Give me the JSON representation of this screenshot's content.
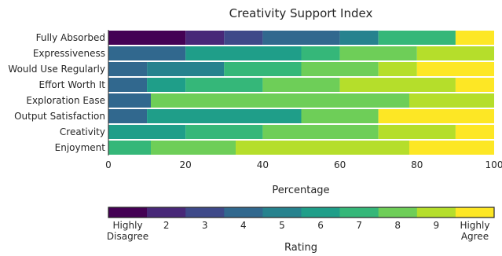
{
  "chart_data": {
    "type": "bar",
    "orientation": "horizontal",
    "stacked": true,
    "title": "Creativity Support Index",
    "xlabel": "Percentage",
    "xlim": [
      0,
      100
    ],
    "x_ticks": [
      "0",
      "20",
      "40",
      "60",
      "80",
      "100"
    ],
    "grid": false,
    "categories": [
      "Fully Absorbed",
      "Expressiveness",
      "Would Use Regularly",
      "Effort Worth It",
      "Exploration Ease",
      "Output Satisfaction",
      "Creativity",
      "Enjoyment"
    ],
    "series": [
      {
        "name": "Highly Disagree",
        "values": [
          20,
          0,
          0,
          0,
          0,
          0,
          0,
          0
        ]
      },
      {
        "name": "2",
        "values": [
          10,
          0,
          0,
          0,
          0,
          0,
          0,
          0
        ]
      },
      {
        "name": "3",
        "values": [
          10,
          0,
          0,
          0,
          0,
          0,
          0,
          0
        ]
      },
      {
        "name": "4",
        "values": [
          20,
          20,
          10,
          10,
          11,
          10,
          0,
          0
        ]
      },
      {
        "name": "5",
        "values": [
          10,
          0,
          20,
          0,
          0,
          0,
          0,
          0
        ]
      },
      {
        "name": "6",
        "values": [
          0,
          30,
          0,
          10,
          0,
          40,
          20,
          0
        ]
      },
      {
        "name": "7",
        "values": [
          20,
          10,
          20,
          20,
          0,
          0,
          20,
          11
        ]
      },
      {
        "name": "8",
        "values": [
          0,
          20,
          20,
          20,
          67,
          20,
          30,
          22
        ]
      },
      {
        "name": "9",
        "values": [
          0,
          20,
          10,
          30,
          22,
          0,
          20,
          45
        ]
      },
      {
        "name": "Highly Agree",
        "values": [
          10,
          0,
          20,
          10,
          0,
          30,
          10,
          22
        ]
      }
    ],
    "colors": [
      "#440154",
      "#482878",
      "#3e4989",
      "#31688e",
      "#26828e",
      "#1f9e89",
      "#35b779",
      "#6ece58",
      "#b5de2b",
      "#fde725"
    ],
    "colorbar": {
      "label": "Rating",
      "tick_labels": [
        "Highly\nDisagree",
        "2",
        "3",
        "4",
        "5",
        "6",
        "7",
        "8",
        "9",
        "Highly\nAgree"
      ]
    }
  }
}
